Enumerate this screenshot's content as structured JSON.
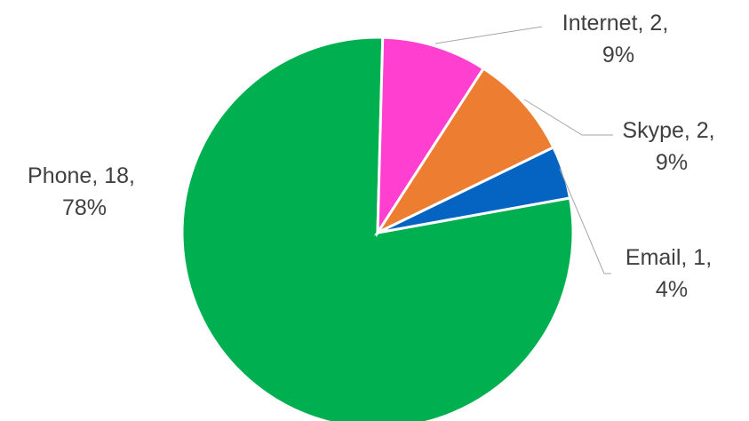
{
  "chart_data": {
    "type": "pie",
    "title": "",
    "series": [
      {
        "name": "",
        "values": [
          18,
          2,
          2,
          1
        ]
      }
    ],
    "categories": [
      "Phone",
      "Internet",
      "Skype",
      "Email"
    ],
    "slices": [
      {
        "label": "Phone",
        "value": 18,
        "percent": "78%",
        "color": "#00b050",
        "line1": "Phone, 18,",
        "line2": "78%"
      },
      {
        "label": "Internet",
        "value": 2,
        "percent": "9%",
        "color": "#ff3fcf",
        "line1": "Internet, 2,",
        "line2": "9%"
      },
      {
        "label": "Skype",
        "value": 2,
        "percent": "9%",
        "color": "#ed7d31",
        "line1": "Skype, 2,",
        "line2": "9%"
      },
      {
        "label": "Email",
        "value": 1,
        "percent": "4%",
        "color": "#0563c1",
        "line1": "Email, 1,",
        "line2": "4%"
      }
    ],
    "legend": "none",
    "data_labels": "category, value, percentage"
  }
}
